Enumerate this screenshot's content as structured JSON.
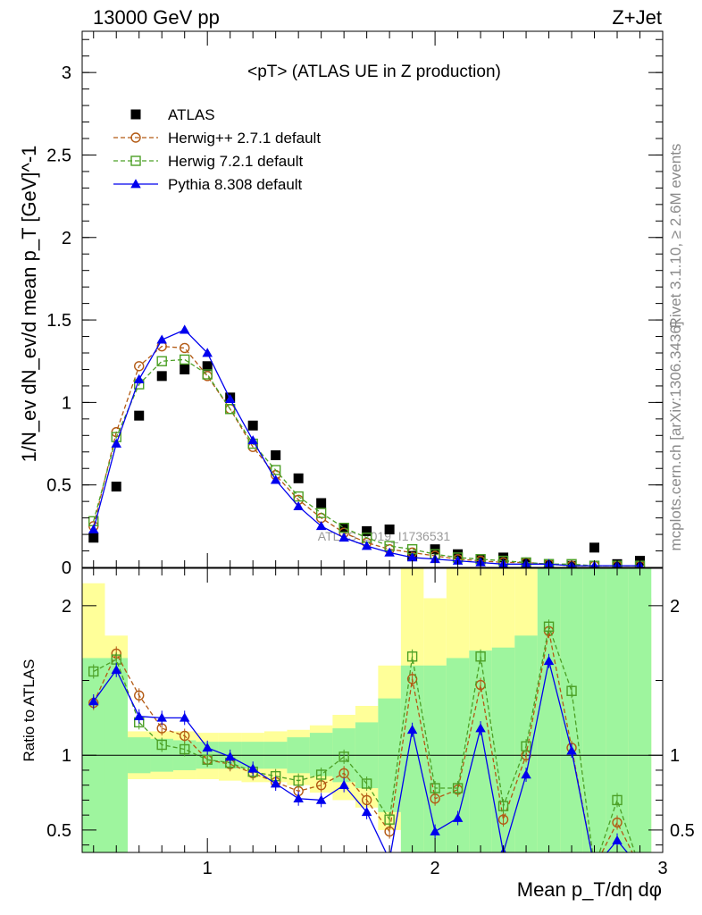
{
  "header": {
    "left": "13000 GeV pp",
    "right": "Z+Jet"
  },
  "side_labels": {
    "rivet": "Rivet 3.1.10, ≥ 2.6M events",
    "mcplots": "mcplots.cern.ch [arXiv:1306.3436]"
  },
  "watermark": "ATLAS_2019_I1736531",
  "colors": {
    "atlas": "#000000",
    "herwigpp": "#b35a14",
    "herwig7": "#4ca026",
    "pythia": "#0000ee",
    "band_inner": "#9ef59e",
    "band_outer": "#ffff99"
  },
  "chart_data": [
    {
      "type": "scatter",
      "title": "<pT> (ATLAS UE in Z production)",
      "ylabel": "1/N_ev dN_ev/d mean p_T [GeV]^-1",
      "xlim": [
        0.45,
        3.0
      ],
      "ylim": [
        0,
        3.25
      ],
      "yticks": [
        0,
        0.5,
        1,
        1.5,
        2,
        2.5,
        3
      ],
      "ytick_labels": [
        "0",
        "0.5",
        "1",
        "1.5",
        "2",
        "2.5",
        "3"
      ],
      "legend_position": "top-left",
      "x": [
        0.5,
        0.6,
        0.7,
        0.8,
        0.9,
        1.0,
        1.1,
        1.2,
        1.3,
        1.4,
        1.5,
        1.6,
        1.7,
        1.8,
        1.9,
        2.0,
        2.1,
        2.2,
        2.3,
        2.4,
        2.5,
        2.6,
        2.7,
        2.8,
        2.9
      ],
      "series": [
        {
          "name": "ATLAS",
          "marker": "square-filled",
          "values": [
            0.18,
            0.49,
            0.92,
            1.16,
            1.2,
            1.22,
            1.03,
            0.86,
            0.68,
            0.54,
            0.39,
            0.24,
            0.22,
            0.23,
            0.07,
            0.11,
            0.08,
            0.05,
            0.06,
            0.03,
            0.02,
            0.01,
            0.12,
            0.02,
            0.04
          ]
        },
        {
          "name": "Herwig++ 2.7.1 default",
          "marker": "circle-open",
          "dashed": true,
          "values": [
            0.25,
            0.82,
            1.22,
            1.34,
            1.33,
            1.16,
            0.96,
            0.73,
            0.56,
            0.41,
            0.3,
            0.21,
            0.15,
            0.11,
            0.09,
            0.07,
            0.05,
            0.04,
            0.03,
            0.03,
            0.02,
            0.01,
            0.01,
            0.01,
            0.01
          ]
        },
        {
          "name": "Herwig 7.2.1 default",
          "marker": "square-open",
          "dashed": true,
          "values": [
            0.28,
            0.79,
            1.11,
            1.25,
            1.26,
            1.17,
            0.96,
            0.75,
            0.59,
            0.43,
            0.33,
            0.24,
            0.18,
            0.13,
            0.11,
            0.08,
            0.06,
            0.05,
            0.04,
            0.03,
            0.02,
            0.02,
            0.01,
            0.01,
            0.01
          ]
        },
        {
          "name": "Pythia 8.308 default",
          "marker": "triangle-filled",
          "dashed": false,
          "values": [
            0.23,
            0.75,
            1.14,
            1.38,
            1.44,
            1.3,
            1.02,
            0.77,
            0.53,
            0.37,
            0.25,
            0.18,
            0.13,
            0.09,
            0.06,
            0.05,
            0.04,
            0.03,
            0.02,
            0.02,
            0.02,
            0.01,
            0.01,
            0.01,
            0.01
          ]
        }
      ]
    },
    {
      "type": "line",
      "ylabel": "Ratio to ATLAS",
      "xlabel": "Mean p_T/dη dφ",
      "xlim": [
        0.45,
        3.0
      ],
      "ylim": [
        0.35,
        2.25
      ],
      "xticks": [
        1,
        2,
        3
      ],
      "xtick_labels": [
        "1",
        "2",
        "3"
      ],
      "yticks": [
        0.5,
        1,
        2
      ],
      "ytick_labels": [
        "0.5",
        "1",
        "2"
      ],
      "x": [
        0.5,
        0.6,
        0.7,
        0.8,
        0.9,
        1.0,
        1.1,
        1.2,
        1.3,
        1.4,
        1.5,
        1.6,
        1.7,
        1.8,
        1.9,
        2.0,
        2.1,
        2.2,
        2.3,
        2.4,
        2.5,
        2.6,
        2.7,
        2.8,
        2.9
      ],
      "bands": {
        "inner_lo": [
          0.35,
          0.35,
          0.88,
          0.89,
          0.9,
          0.91,
          0.91,
          0.91,
          0.91,
          0.88,
          0.86,
          0.82,
          0.78,
          0.62,
          0.35,
          0.35,
          0.35,
          0.35,
          0.35,
          0.35,
          0.35,
          0.35,
          0.35,
          0.35,
          0.35
        ],
        "inner_hi": [
          1.65,
          1.65,
          1.12,
          1.11,
          1.1,
          1.09,
          1.09,
          1.09,
          1.09,
          1.12,
          1.15,
          1.18,
          1.22,
          1.38,
          1.6,
          1.6,
          1.65,
          1.7,
          1.72,
          1.8,
          2.25,
          2.25,
          2.25,
          2.25,
          2.25
        ],
        "outer_lo": [
          0.35,
          0.8,
          0.84,
          0.84,
          0.84,
          0.84,
          0.83,
          0.82,
          0.82,
          0.8,
          0.75,
          0.7,
          0.65,
          0.5,
          0.35,
          0.35,
          0.35,
          0.35,
          0.35,
          0.35,
          0.35,
          0.35,
          0.35,
          0.35,
          0.35
        ],
        "outer_hi": [
          2.15,
          1.8,
          1.16,
          1.16,
          1.16,
          1.15,
          1.15,
          1.15,
          1.16,
          1.17,
          1.2,
          1.27,
          1.33,
          1.6,
          2.25,
          2.05,
          2.25,
          2.25,
          2.25,
          2.25,
          2.25,
          2.25,
          1.9,
          2.25,
          2.05
        ]
      },
      "series": [
        {
          "name": "Herwig++ 2.7.1 default",
          "values": [
            1.35,
            1.68,
            1.4,
            1.18,
            1.13,
            0.97,
            0.94,
            0.88,
            0.82,
            0.76,
            0.8,
            0.88,
            0.7,
            0.49,
            1.51,
            0.71,
            0.77,
            1.47,
            0.57,
            1.0,
            1.83,
            1.05,
            0.25,
            0.55,
            0.25
          ]
        },
        {
          "name": "Herwig 7.2.1 default",
          "values": [
            1.56,
            1.64,
            1.22,
            1.07,
            1.04,
            0.97,
            0.95,
            0.89,
            0.86,
            0.83,
            0.87,
            0.99,
            0.81,
            0.57,
            1.66,
            0.78,
            0.78,
            1.66,
            0.66,
            1.06,
            1.86,
            1.43,
            0.25,
            0.7,
            0.25
          ]
        },
        {
          "name": "Pythia 8.308 default",
          "values": [
            1.36,
            1.57,
            1.26,
            1.25,
            1.25,
            1.05,
            0.99,
            0.91,
            0.81,
            0.71,
            0.7,
            0.8,
            0.62,
            0.3,
            1.17,
            0.49,
            0.58,
            1.18,
            0.35,
            0.87,
            1.63,
            1.03,
            0.25,
            0.43,
            0.25
          ]
        }
      ]
    }
  ]
}
